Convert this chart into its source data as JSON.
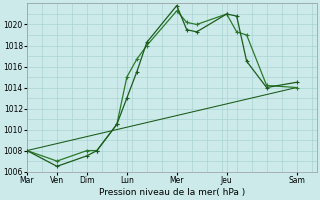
{
  "xlabel": "Pression niveau de la mer( hPa )",
  "background_color": "#cceaea",
  "grid_color": "#aad4d4",
  "line_color_dark": "#1a5c1a",
  "line_color_mid": "#2a7a2a",
  "ylim": [
    1006,
    1022
  ],
  "yticks": [
    1006,
    1008,
    1010,
    1012,
    1014,
    1016,
    1018,
    1020
  ],
  "x_tick_positions": [
    0,
    1.5,
    3,
    5,
    7.5,
    10,
    13.5
  ],
  "x_tick_labels": [
    "Mar",
    "Ven",
    "Dim",
    "Lun",
    "Mer",
    "Jeu",
    "Sam"
  ],
  "xlim": [
    0,
    14.5
  ],
  "series1_x": [
    0,
    1.5,
    3,
    3.5,
    4.5,
    5,
    5.5,
    6,
    7.5,
    8,
    8.5,
    10,
    10.5,
    11,
    12,
    13.5
  ],
  "series1_y": [
    1008,
    1007,
    1008,
    1008.0,
    1010.5,
    1015.0,
    1016.7,
    1018,
    1021.3,
    1020.2,
    1020.0,
    1021.0,
    1019.3,
    1019.0,
    1014.2,
    1014.0
  ],
  "series2_x": [
    0,
    1.5,
    3,
    3.5,
    4.5,
    5,
    5.5,
    6,
    7.5,
    8,
    8.5,
    10,
    10.5,
    11,
    12,
    13.5
  ],
  "series2_y": [
    1008,
    1006.5,
    1007.5,
    1008.0,
    1010.5,
    1013.0,
    1015.5,
    1018.3,
    1021.8,
    1019.5,
    1019.3,
    1021.0,
    1020.8,
    1016.5,
    1014.0,
    1014.5
  ],
  "series3_x": [
    0,
    13.5
  ],
  "series3_y": [
    1008.0,
    1014.0
  ],
  "marker_size": 3.0,
  "linewidth": 0.9
}
